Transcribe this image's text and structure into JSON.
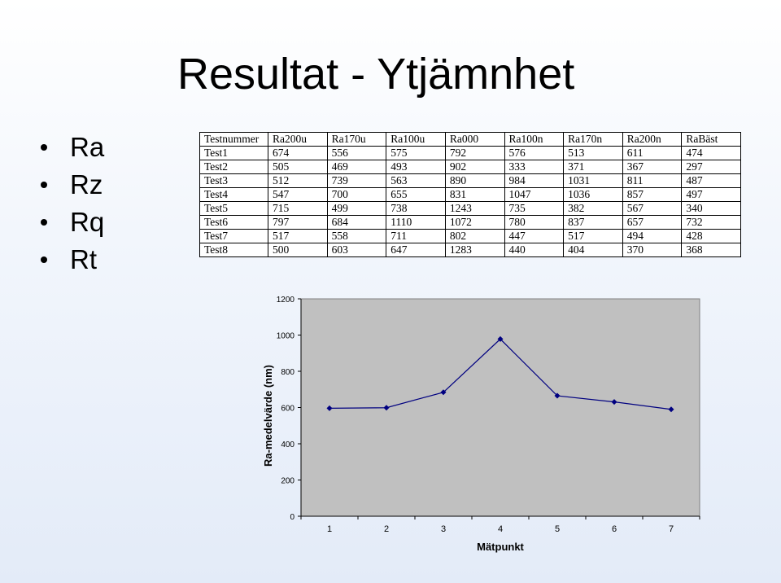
{
  "title": "Resultat - Ytjämnhet",
  "bullets": [
    "Ra",
    "Rz",
    "Rq",
    "Rt"
  ],
  "table": {
    "headers": [
      "Testnummer",
      "Ra200u",
      "Ra170u",
      "Ra100u",
      "Ra000",
      "Ra100n",
      "Ra170n",
      "Ra200n",
      "RaBäst"
    ],
    "rows": [
      [
        "Test1",
        "674",
        "556",
        "575",
        "792",
        "576",
        "513",
        "611",
        "474"
      ],
      [
        "Test2",
        "505",
        "469",
        "493",
        "902",
        "333",
        "371",
        "367",
        "297"
      ],
      [
        "Test3",
        "512",
        "739",
        "563",
        "890",
        "984",
        "1031",
        "811",
        "487"
      ],
      [
        "Test4",
        "547",
        "700",
        "655",
        "831",
        "1047",
        "1036",
        "857",
        "497"
      ],
      [
        "Test5",
        "715",
        "499",
        "738",
        "1243",
        "735",
        "382",
        "567",
        "340"
      ],
      [
        "Test6",
        "797",
        "684",
        "1110",
        "1072",
        "780",
        "837",
        "657",
        "732"
      ],
      [
        "Test7",
        "517",
        "558",
        "711",
        "802",
        "447",
        "517",
        "494",
        "428"
      ],
      [
        "Test8",
        "500",
        "603",
        "647",
        "1283",
        "440",
        "404",
        "370",
        "368"
      ]
    ]
  },
  "chart_data": {
    "type": "line",
    "x": [
      1,
      2,
      3,
      4,
      5,
      6,
      7
    ],
    "xticks": [
      "1",
      "2",
      "3",
      "4",
      "5",
      "6",
      "7"
    ],
    "series": [
      {
        "values": [
          596,
          599,
          684,
          978,
          665,
          631,
          590
        ]
      }
    ],
    "xlabel": "Mätpunkt",
    "ylabel": "Ra-medelvärde (nm)",
    "ylim": [
      0,
      1200
    ],
    "yticks": [
      0,
      200,
      400,
      600,
      800,
      1000,
      1200
    ],
    "ytick_labels": [
      "0",
      "200",
      "400",
      "600",
      "800",
      "1000",
      "1200"
    ],
    "grid": false,
    "legend": "none",
    "line_color": "#000080",
    "plot_background": "#c0c0c0"
  }
}
